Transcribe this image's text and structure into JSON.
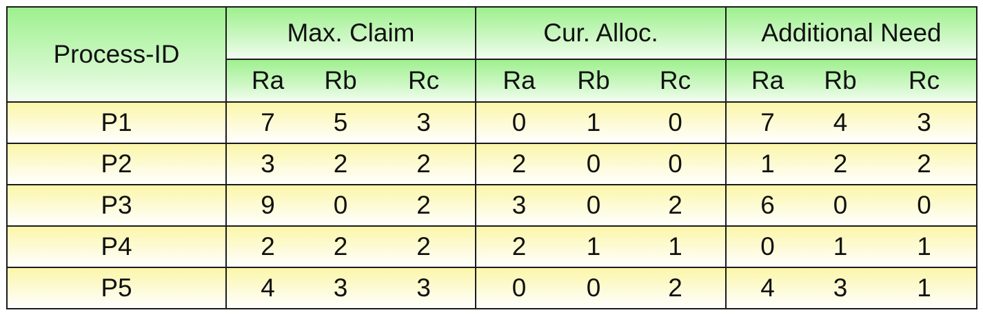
{
  "table": {
    "process_header": "Process-ID",
    "groups": [
      "Max. Claim",
      "Cur. Alloc.",
      "Additional Need"
    ],
    "sub_headers": [
      "Ra",
      "Rb",
      "Rc"
    ],
    "rows": [
      {
        "id": "P1",
        "values": [
          "7",
          "5",
          "3",
          "0",
          "1",
          "0",
          "7",
          "4",
          "3"
        ]
      },
      {
        "id": "P2",
        "values": [
          "3",
          "2",
          "2",
          "2",
          "0",
          "0",
          "1",
          "2",
          "2"
        ]
      },
      {
        "id": "P3",
        "values": [
          "9",
          "0",
          "2",
          "3",
          "0",
          "2",
          "6",
          "0",
          "0"
        ]
      },
      {
        "id": "P4",
        "values": [
          "2",
          "2",
          "2",
          "2",
          "1",
          "1",
          "0",
          "1",
          "1"
        ]
      },
      {
        "id": "P5",
        "values": [
          "4",
          "3",
          "3",
          "0",
          "0",
          "2",
          "4",
          "3",
          "1"
        ]
      }
    ],
    "colors": {
      "header_green": "#9ef08e",
      "row_yellow": "#fcf6a8",
      "border": "#1a1a1a"
    }
  }
}
